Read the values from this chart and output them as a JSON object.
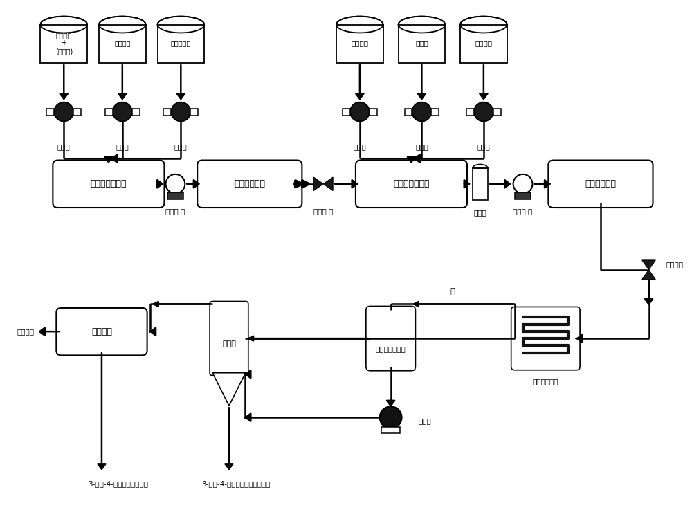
{
  "bg_color": "#ffffff",
  "line_color": "#000000",
  "tank_labels_left": [
    "氯代烷烃\n+\n(抑制剂)",
    "三氧化硫",
    "邻硝基甲苯"
  ],
  "tank_labels_right": [
    "氯代烷烃",
    "氯磺酸",
    "三氧化硫"
  ],
  "pump_label": "计量泵",
  "label_hengliubeng1": "恒流泵 一",
  "label_danyxf1": "单向阀 一",
  "label_buffer": "缓冲器",
  "label_hengliubeng2": "恒流泵 二",
  "label_danyxf2": "单向阀二",
  "label_solvent": "溶剂回收",
  "label_water": "水",
  "label_cooling": "物料冷却管道",
  "label_pump2": "输料泵",
  "label_product1": "3-硝基-4-甲基苯磺酰氯产品",
  "label_product2": "3-硝基-4-甲基苯磺酰氯粗品溶液",
  "box1": "第一静态混合器",
  "box2": "第一微反应器",
  "box3": "第二静态混合器",
  "box4": "第二微反应器",
  "box5": "减压蒸馏",
  "box6": "分液器",
  "box7": "恒温静态收集器"
}
